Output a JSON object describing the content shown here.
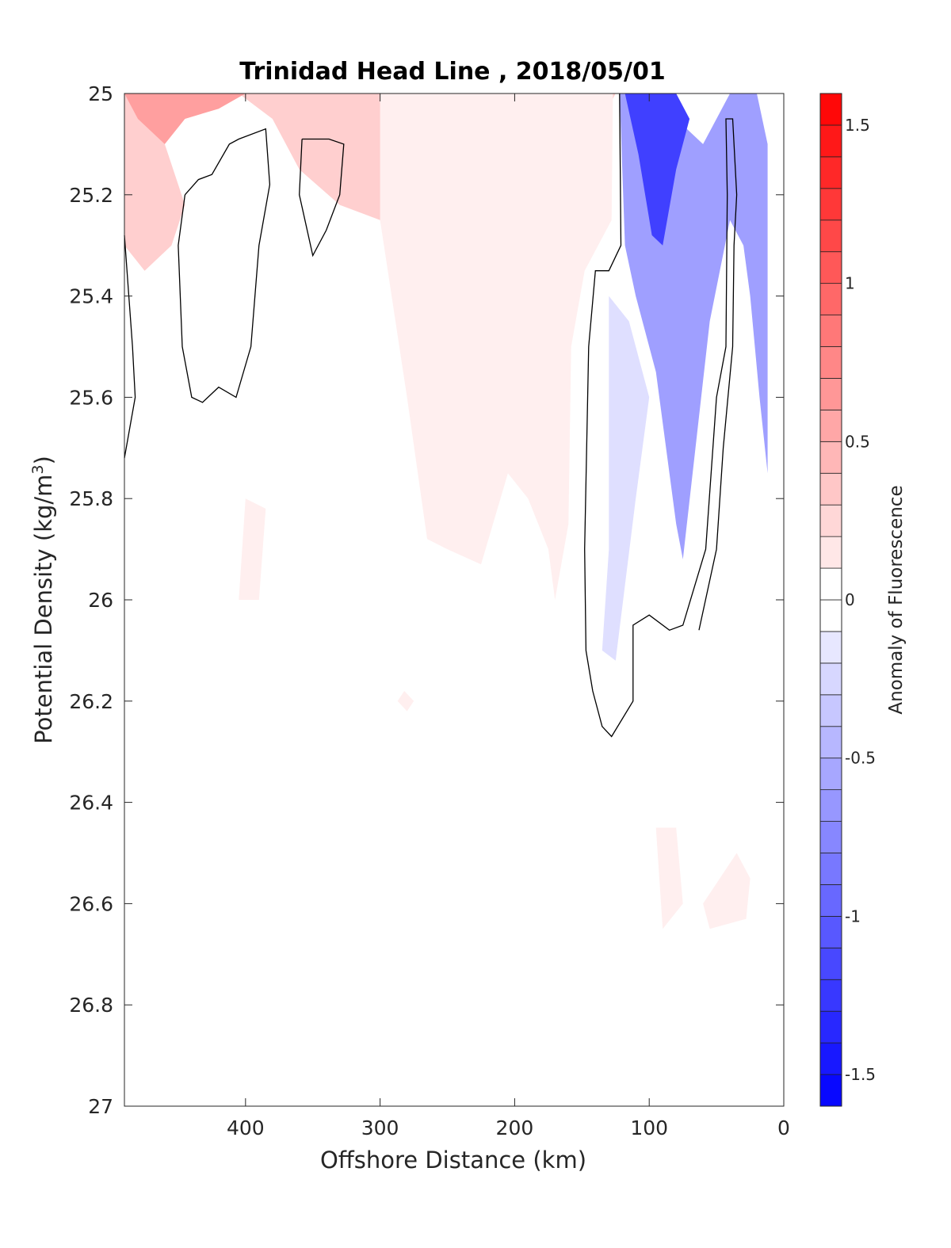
{
  "chart_data": {
    "type": "heatmap",
    "subtype": "filled-contour",
    "title": "Trinidad Head Line , 2018/05/01",
    "xlabel": "Offshore Distance (km)",
    "ylabel_main": "Potential Density (kg/m",
    "ylabel_sup": "3",
    "ylabel_close": ")",
    "xlim": [
      490,
      0
    ],
    "x_reversed": true,
    "ylim": [
      25,
      27
    ],
    "y_reversed": true,
    "x_ticks": [
      {
        "value": 400,
        "label": "400"
      },
      {
        "value": 300,
        "label": "300"
      },
      {
        "value": 200,
        "label": "200"
      },
      {
        "value": 100,
        "label": "100"
      },
      {
        "value": 0,
        "label": "0"
      }
    ],
    "y_ticks": [
      {
        "value": 25,
        "label": "25"
      },
      {
        "value": 25.2,
        "label": "25.2"
      },
      {
        "value": 25.4,
        "label": "25.4"
      },
      {
        "value": 25.6,
        "label": "25.6"
      },
      {
        "value": 25.8,
        "label": "25.8"
      },
      {
        "value": 26,
        "label": "26"
      },
      {
        "value": 26.2,
        "label": "26.2"
      },
      {
        "value": 26.4,
        "label": "26.4"
      },
      {
        "value": 26.6,
        "label": "26.6"
      },
      {
        "value": 26.8,
        "label": "26.8"
      },
      {
        "value": 27,
        "label": "27"
      }
    ],
    "colorbar": {
      "label": "Anomaly of Fluorescence",
      "range": [
        -1.6,
        1.6
      ],
      "step": 0.1,
      "negative_color": "#0000ff",
      "positive_color": "#ff0000",
      "ticks": [
        {
          "value": 1.5,
          "label": "1.5"
        },
        {
          "value": 1,
          "label": "1"
        },
        {
          "value": 0.5,
          "label": "0.5"
        },
        {
          "value": 0,
          "label": "0"
        },
        {
          "value": -0.5,
          "label": "-0.5"
        },
        {
          "value": -1,
          "label": "-1"
        },
        {
          "value": -1.5,
          "label": "-1.5"
        }
      ]
    },
    "regions": [
      {
        "name": "offshore-surface-positive",
        "level": 0.3,
        "points": [
          [
            490,
            25
          ],
          [
            405,
            25
          ],
          [
            380,
            25.05
          ],
          [
            360,
            25.15
          ],
          [
            330,
            25.22
          ],
          [
            300,
            25.25
          ],
          [
            292,
            25.35
          ],
          [
            280,
            25.42
          ],
          [
            270,
            25.35
          ],
          [
            250,
            25.22
          ],
          [
            210,
            25.18
          ],
          [
            190,
            25.2
          ],
          [
            175,
            25.15
          ],
          [
            155,
            25.1
          ],
          [
            135,
            25.05
          ],
          [
            125,
            25
          ],
          [
            490,
            25
          ]
        ]
      },
      {
        "name": "surface-positive-core-a",
        "level": 0.6,
        "points": [
          [
            490,
            25
          ],
          [
            400,
            25
          ],
          [
            420,
            25.03
          ],
          [
            445,
            25.05
          ],
          [
            460,
            25.1
          ],
          [
            470,
            25.2
          ],
          [
            480,
            25.25
          ],
          [
            490,
            25.22
          ]
        ]
      },
      {
        "name": "surface-positive-core-b",
        "level": 0.6,
        "points": [
          [
            240,
            25
          ],
          [
            155,
            25
          ],
          [
            160,
            25.05
          ],
          [
            175,
            25.08
          ],
          [
            195,
            25.09
          ],
          [
            220,
            25.06
          ]
        ]
      },
      {
        "name": "offshore-interior-positive",
        "level": 0.1,
        "points": [
          [
            300,
            25.25
          ],
          [
            280,
            25.6
          ],
          [
            265,
            25.88
          ],
          [
            250,
            25.9
          ],
          [
            225,
            25.93
          ],
          [
            205,
            25.75
          ],
          [
            190,
            25.8
          ],
          [
            175,
            25.9
          ],
          [
            170,
            26.0
          ],
          [
            160,
            25.85
          ],
          [
            158,
            25.5
          ],
          [
            148,
            25.35
          ],
          [
            128,
            25.25
          ],
          [
            127,
            25
          ],
          [
            300,
            25
          ]
        ]
      },
      {
        "name": "left-surface-positive",
        "level": 0.3,
        "points": [
          [
            490,
            25.0
          ],
          [
            490,
            25.3
          ],
          [
            475,
            25.35
          ],
          [
            455,
            25.3
          ],
          [
            445,
            25.22
          ],
          [
            460,
            25.1
          ],
          [
            480,
            25.05
          ]
        ]
      },
      {
        "name": "nearshore-negative",
        "level": -0.6,
        "points": [
          [
            122,
            25
          ],
          [
            100,
            25
          ],
          [
            80,
            25.05
          ],
          [
            60,
            25.1
          ],
          [
            40,
            25.0
          ],
          [
            20,
            25.0
          ],
          [
            12,
            25.1
          ],
          [
            12,
            25.75
          ],
          [
            18,
            25.6
          ],
          [
            25,
            25.4
          ],
          [
            30,
            25.3
          ],
          [
            40,
            25.25
          ],
          [
            55,
            25.45
          ],
          [
            75,
            25.92
          ],
          [
            80,
            25.85
          ],
          [
            95,
            25.55
          ],
          [
            110,
            25.4
          ],
          [
            118,
            25.3
          ],
          [
            120,
            25.15
          ]
        ]
      },
      {
        "name": "nearshore-negative-core",
        "level": -1.2,
        "points": [
          [
            118,
            25
          ],
          [
            80,
            25
          ],
          [
            70,
            25.05
          ],
          [
            80,
            25.15
          ],
          [
            90,
            25.3
          ],
          [
            98,
            25.28
          ],
          [
            108,
            25.12
          ]
        ]
      },
      {
        "name": "nearshore-shallow-negative",
        "level": -0.2,
        "points": [
          [
            130,
            25.4
          ],
          [
            130,
            25.9
          ],
          [
            135,
            26.1
          ],
          [
            125,
            26.12
          ],
          [
            110,
            25.8
          ],
          [
            100,
            25.6
          ],
          [
            115,
            25.45
          ]
        ]
      },
      {
        "name": "deep-positive-patch-a",
        "level": 0.1,
        "points": [
          [
            95,
            26.45
          ],
          [
            90,
            26.65
          ],
          [
            75,
            26.6
          ],
          [
            80,
            26.45
          ]
        ]
      },
      {
        "name": "deep-positive-patch-b",
        "level": 0.1,
        "points": [
          [
            35,
            26.5
          ],
          [
            25,
            26.55
          ],
          [
            28,
            26.63
          ],
          [
            55,
            26.65
          ],
          [
            60,
            26.6
          ]
        ]
      },
      {
        "name": "deep-positive-patch-c",
        "level": 0.1,
        "points": [
          [
            400,
            25.8
          ],
          [
            385,
            25.82
          ],
          [
            390,
            26.0
          ],
          [
            405,
            26.0
          ]
        ]
      },
      {
        "name": "deep-positive-patch-d",
        "level": 0.1,
        "points": [
          [
            282,
            26.18
          ],
          [
            275,
            26.2
          ],
          [
            280,
            26.22
          ],
          [
            287,
            26.2
          ]
        ]
      }
    ],
    "zero_contours": [
      {
        "name": "zero-contour-left-edge",
        "points": [
          [
            490,
            25.28
          ],
          [
            484,
            25.5
          ],
          [
            482,
            25.6
          ],
          [
            490,
            25.72
          ]
        ]
      },
      {
        "name": "zero-contour-loop-a",
        "points": [
          [
            445,
            25.2
          ],
          [
            435,
            25.17
          ],
          [
            425,
            25.16
          ],
          [
            412,
            25.1
          ],
          [
            405,
            25.09
          ],
          [
            385,
            25.07
          ],
          [
            382,
            25.18
          ],
          [
            390,
            25.3
          ],
          [
            396,
            25.5
          ],
          [
            407,
            25.6
          ],
          [
            420,
            25.58
          ],
          [
            432,
            25.61
          ],
          [
            440,
            25.6
          ],
          [
            447,
            25.5
          ],
          [
            450,
            25.3
          ],
          [
            445,
            25.2
          ]
        ]
      },
      {
        "name": "zero-contour-loop-b",
        "points": [
          [
            358,
            25.09
          ],
          [
            338,
            25.09
          ],
          [
            327,
            25.1
          ],
          [
            330,
            25.2
          ],
          [
            340,
            25.27
          ],
          [
            350,
            25.32
          ],
          [
            360,
            25.2
          ],
          [
            358,
            25.09
          ]
        ]
      },
      {
        "name": "zero-contour-nearshore",
        "points": [
          [
            122,
            25.0
          ],
          [
            121,
            25.3
          ],
          [
            130,
            25.35
          ],
          [
            140,
            25.35
          ],
          [
            145,
            25.5
          ],
          [
            148,
            25.9
          ],
          [
            147,
            26.1
          ],
          [
            142,
            26.18
          ],
          [
            135,
            26.25
          ],
          [
            128,
            26.27
          ],
          [
            112,
            26.2
          ],
          [
            112,
            26.05
          ],
          [
            100,
            26.03
          ],
          [
            85,
            26.06
          ],
          [
            75,
            26.05
          ],
          [
            58,
            25.9
          ],
          [
            50,
            25.6
          ],
          [
            43,
            25.5
          ],
          [
            42,
            25.2
          ],
          [
            43,
            25.05
          ],
          [
            38,
            25.05
          ],
          [
            35,
            25.2
          ],
          [
            37,
            25.3
          ],
          [
            38,
            25.5
          ],
          [
            45,
            25.7
          ],
          [
            50,
            25.9
          ],
          [
            63,
            26.06
          ]
        ]
      }
    ]
  }
}
